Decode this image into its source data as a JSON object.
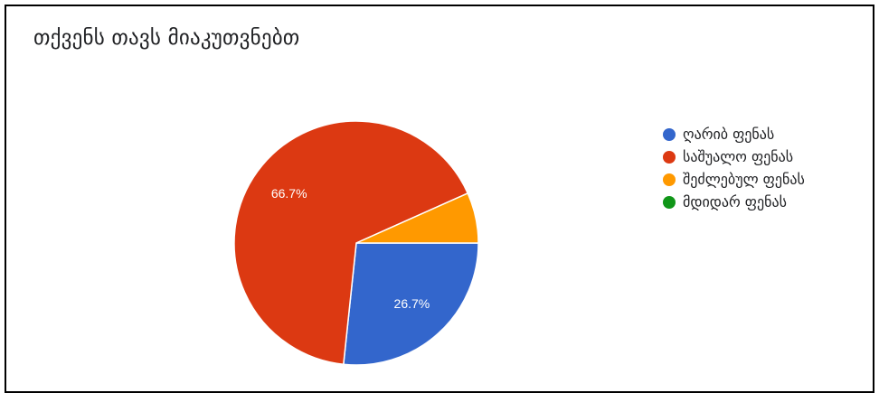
{
  "chart_data": {
    "type": "pie",
    "title": "თქვენს თავს მიაკუთვნებთ",
    "legend_position": "right",
    "slices": [
      {
        "label": "ღარიბ ფენას",
        "value": 26.7,
        "color": "#3366cc",
        "data_label": "26.7%"
      },
      {
        "label": "საშუალო ფენას",
        "value": 66.7,
        "color": "#dc3912",
        "data_label": "66.7%"
      },
      {
        "label": "შეძლებულ ფენას",
        "value": 6.7,
        "color": "#ff9900",
        "data_label": ""
      },
      {
        "label": "მდიდარ ფენას",
        "value": 0,
        "color": "#109618",
        "data_label": ""
      }
    ]
  }
}
